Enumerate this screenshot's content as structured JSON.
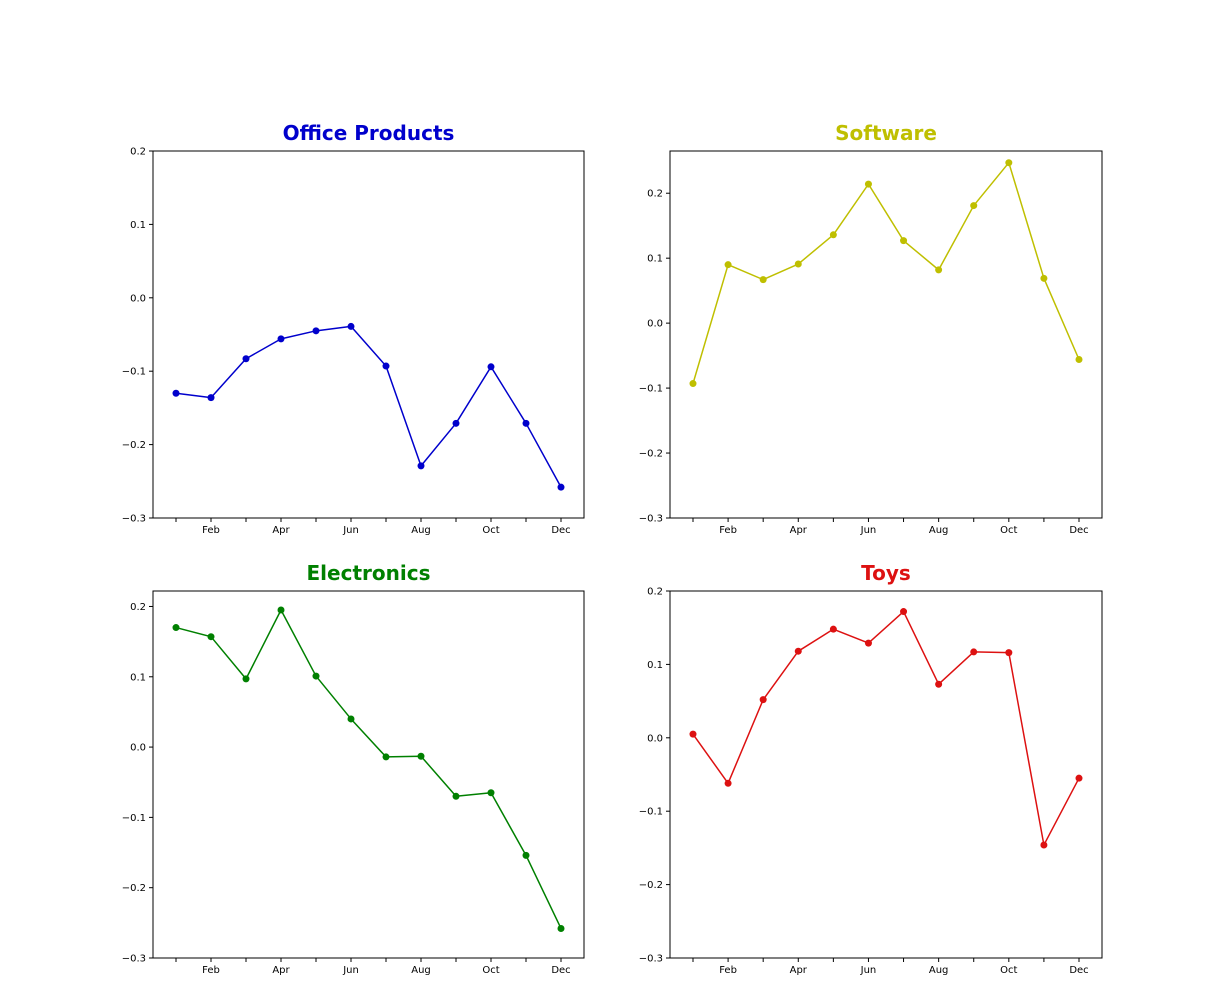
{
  "chart_data": [
    {
      "type": "line",
      "title": "Office Products",
      "color": "#0000cc",
      "x": [
        "Jan",
        "Feb",
        "Mar",
        "Apr",
        "May",
        "Jun",
        "Jul",
        "Aug",
        "Sep",
        "Oct",
        "Nov",
        "Dec"
      ],
      "x_tick_labels": [
        "",
        "Feb",
        "",
        "Apr",
        "",
        "Jun",
        "",
        "Aug",
        "",
        "Oct",
        "",
        "Dec"
      ],
      "values": [
        -0.13,
        -0.136,
        -0.083,
        -0.056,
        -0.045,
        -0.039,
        -0.093,
        -0.229,
        -0.171,
        -0.094,
        -0.171,
        -0.258
      ],
      "ylim": [
        -0.3,
        0.2
      ],
      "y_ticks": [
        -0.3,
        -0.2,
        -0.1,
        0.0,
        0.1,
        0.2
      ],
      "y_tick_labels": [
        "−0.3",
        "−0.2",
        "−0.1",
        "0.0",
        "0.1",
        "0.2"
      ],
      "grid": false
    },
    {
      "type": "line",
      "title": "Software",
      "color": "#bfbf00",
      "x": [
        "Jan",
        "Feb",
        "Mar",
        "Apr",
        "May",
        "Jun",
        "Jul",
        "Aug",
        "Sep",
        "Oct",
        "Nov",
        "Dec"
      ],
      "x_tick_labels": [
        "",
        "Feb",
        "",
        "Apr",
        "",
        "Jun",
        "",
        "Aug",
        "",
        "Oct",
        "",
        "Dec"
      ],
      "values": [
        -0.093,
        0.09,
        0.067,
        0.091,
        0.136,
        0.214,
        0.127,
        0.082,
        0.181,
        0.247,
        0.069,
        -0.056
      ],
      "ylim": [
        -0.3,
        0.265
      ],
      "y_ticks": [
        -0.3,
        -0.2,
        -0.1,
        0.0,
        0.1,
        0.2
      ],
      "y_tick_labels": [
        "−0.3",
        "−0.2",
        "−0.1",
        "0.0",
        "0.1",
        "0.2"
      ],
      "grid": false
    },
    {
      "type": "line",
      "title": "Electronics",
      "color": "#008000",
      "x": [
        "Jan",
        "Feb",
        "Mar",
        "Apr",
        "May",
        "Jun",
        "Jul",
        "Aug",
        "Sep",
        "Oct",
        "Nov",
        "Dec"
      ],
      "x_tick_labels": [
        "",
        "Feb",
        "",
        "Apr",
        "",
        "Jun",
        "",
        "Aug",
        "",
        "Oct",
        "",
        "Dec"
      ],
      "values": [
        0.17,
        0.157,
        0.097,
        0.195,
        0.101,
        0.04,
        -0.014,
        -0.013,
        -0.07,
        -0.065,
        -0.154,
        -0.258
      ],
      "ylim": [
        -0.3,
        0.222
      ],
      "y_ticks": [
        -0.3,
        -0.2,
        -0.1,
        0.0,
        0.1,
        0.2
      ],
      "y_tick_labels": [
        "−0.3",
        "−0.2",
        "−0.1",
        "0.0",
        "0.1",
        "0.2"
      ],
      "grid": false
    },
    {
      "type": "line",
      "title": "Toys",
      "color": "#dd1111",
      "x": [
        "Jan",
        "Feb",
        "Mar",
        "Apr",
        "May",
        "Jun",
        "Jul",
        "Aug",
        "Sep",
        "Oct",
        "Nov",
        "Dec"
      ],
      "x_tick_labels": [
        "",
        "Feb",
        "",
        "Apr",
        "",
        "Jun",
        "",
        "Aug",
        "",
        "Oct",
        "",
        "Dec"
      ],
      "values": [
        0.005,
        -0.062,
        0.052,
        0.118,
        0.148,
        0.129,
        0.172,
        0.073,
        0.117,
        0.116,
        -0.146,
        -0.055
      ],
      "ylim": [
        -0.3,
        0.2
      ],
      "y_ticks": [
        -0.3,
        -0.2,
        -0.1,
        0.0,
        0.1,
        0.2
      ],
      "y_tick_labels": [
        "−0.3",
        "−0.2",
        "−0.1",
        "0.0",
        "0.1",
        "0.2"
      ],
      "grid": false
    }
  ]
}
